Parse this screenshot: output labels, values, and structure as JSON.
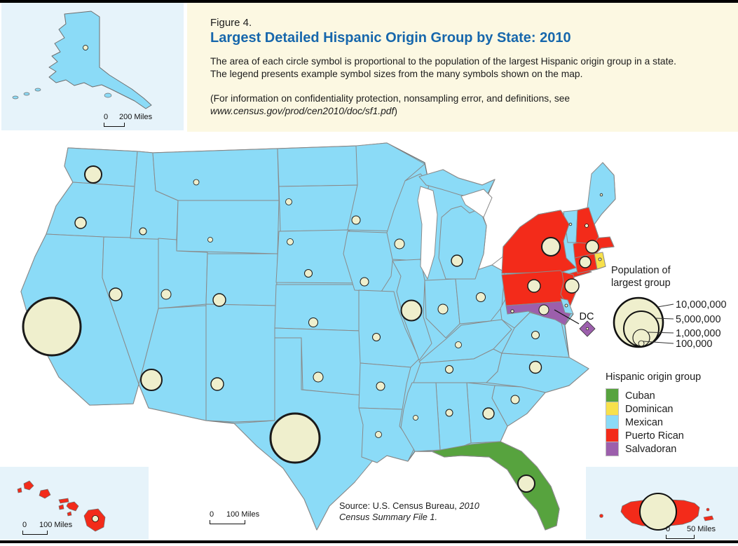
{
  "header": {
    "figure_label": "Figure 4.",
    "title": "Largest Detailed Hispanic Origin Group by State: 2010",
    "description_line1": "The area of each circle symbol is proportional to the population of the largest Hispanic origin group in a state.",
    "description_line2": "The legend presents example symbol sizes from the many symbols shown on the map.",
    "note_line1": "(For information on confidentiality protection, nonsampling error, and definitions, see",
    "note_url": "www.census.gov/prod/cen2010/doc/sf1.pdf",
    "note_close": ")"
  },
  "size_legend": {
    "title_line1": "Population of",
    "title_line2": "largest group",
    "items": [
      {
        "label": "10,000,000",
        "value": 10000000
      },
      {
        "label": "5,000,000",
        "value": 5000000
      },
      {
        "label": "1,000,000",
        "value": 1000000
      },
      {
        "label": "100,000",
        "value": 100000
      }
    ]
  },
  "origin_legend": {
    "title": "Hispanic origin group",
    "entries": [
      {
        "label": "Cuban",
        "color": "#57A33E"
      },
      {
        "label": "Dominican",
        "color": "#F8E14B"
      },
      {
        "label": "Mexican",
        "color": "#8BDBF7"
      },
      {
        "label": "Puerto Rican",
        "color": "#F32B1A"
      },
      {
        "label": "Salvadoran",
        "color": "#9C5FAC"
      }
    ]
  },
  "insets": {
    "alaska": {
      "scale_zero": "0",
      "scale_label": "200 Miles"
    },
    "hawaii": {
      "scale_zero": "0",
      "scale_label": "100 Miles"
    },
    "mainland": {
      "scale_zero": "0",
      "scale_label": "100 Miles"
    },
    "puerto_rico": {
      "scale_zero": "0",
      "scale_label": "50 Miles"
    }
  },
  "source": {
    "prefix": "Source:  U.S. Census Bureau, ",
    "citation": "2010 Census Summary File 1."
  },
  "map": {
    "dc_label": "DC",
    "colors": {
      "cuban": "#57A33E",
      "dominican": "#F8E14B",
      "mexican": "#8BDBF7",
      "puerto_rican": "#F32B1A",
      "salvadoran": "#9C5FAC",
      "circle_fill": "#EFEFCD",
      "circle_stroke": "#1a1a1a",
      "border": "#8a8a8a",
      "coast": "#6e6e6e",
      "water": "#ffffff"
    },
    "states": [
      {
        "id": "WA",
        "group": "mexican",
        "layer": 1
      },
      {
        "id": "OR",
        "group": "mexican",
        "layer": 1
      },
      {
        "id": "CA",
        "group": "mexican",
        "layer": 1
      },
      {
        "id": "NV",
        "group": "mexican",
        "layer": 1
      },
      {
        "id": "ID",
        "group": "mexican",
        "layer": 1
      },
      {
        "id": "MT",
        "group": "mexican",
        "layer": 1
      },
      {
        "id": "WY",
        "group": "mexican",
        "layer": 1
      },
      {
        "id": "UT",
        "group": "mexican",
        "layer": 1
      },
      {
        "id": "CO",
        "group": "mexican",
        "layer": 1
      },
      {
        "id": "NM",
        "group": "mexican",
        "layer": 1
      },
      {
        "id": "AZ",
        "group": "mexican",
        "layer": 1
      },
      {
        "id": "ND",
        "group": "mexican",
        "layer": 1
      },
      {
        "id": "SD",
        "group": "mexican",
        "layer": 1
      },
      {
        "id": "NE",
        "group": "mexican",
        "layer": 1
      },
      {
        "id": "KS",
        "group": "mexican",
        "layer": 1
      },
      {
        "id": "OK",
        "group": "mexican",
        "layer": 1
      },
      {
        "id": "TX",
        "group": "mexican",
        "layer": 1
      },
      {
        "id": "MN",
        "group": "mexican",
        "layer": 1
      },
      {
        "id": "IA",
        "group": "mexican",
        "layer": 1
      },
      {
        "id": "MO",
        "group": "mexican",
        "layer": 1
      },
      {
        "id": "AR",
        "group": "mexican",
        "layer": 1
      },
      {
        "id": "LA",
        "group": "mexican",
        "layer": 1
      },
      {
        "id": "WI",
        "group": "mexican",
        "layer": 1
      },
      {
        "id": "IL",
        "group": "mexican",
        "layer": 1
      },
      {
        "id": "IN",
        "group": "mexican",
        "layer": 1
      },
      {
        "id": "OH",
        "group": "mexican",
        "layer": 1
      },
      {
        "id": "MI",
        "group": "mexican",
        "layer": 1
      },
      {
        "id": "MI_UP",
        "group": "mexican",
        "layer": 1
      },
      {
        "id": "KY",
        "group": "mexican",
        "layer": 1
      },
      {
        "id": "TN",
        "group": "mexican",
        "layer": 1
      },
      {
        "id": "WV",
        "group": "mexican",
        "layer": 1
      },
      {
        "id": "VA",
        "group": "mexican",
        "layer": 1
      },
      {
        "id": "NC",
        "group": "mexican",
        "layer": 1
      },
      {
        "id": "SC",
        "group": "mexican",
        "layer": 1
      },
      {
        "id": "GA",
        "group": "mexican",
        "layer": 1
      },
      {
        "id": "AL",
        "group": "mexican",
        "layer": 1
      },
      {
        "id": "MS",
        "group": "mexican",
        "layer": 1
      },
      {
        "id": "VT",
        "group": "mexican",
        "layer": 1
      },
      {
        "id": "ME",
        "group": "mexican",
        "layer": 1
      },
      {
        "id": "FL",
        "group": "cuban",
        "layer": 2
      },
      {
        "id": "NY",
        "group": "puerto_rican",
        "layer": 2
      },
      {
        "id": "NY_LI",
        "group": "puerto_rican",
        "layer": 2
      },
      {
        "id": "PA",
        "group": "puerto_rican",
        "layer": 2
      },
      {
        "id": "NJ",
        "group": "puerto_rican",
        "layer": 2
      },
      {
        "id": "MD",
        "group": "salvadoran",
        "layer": 2
      },
      {
        "id": "DE",
        "group": "mexican",
        "layer": 2
      },
      {
        "id": "CT",
        "group": "puerto_rican",
        "layer": 2
      },
      {
        "id": "MA",
        "group": "puerto_rican",
        "layer": 2
      },
      {
        "id": "NH",
        "group": "puerto_rican",
        "layer": 2
      },
      {
        "id": "RI",
        "group": "dominican",
        "layer": 2
      }
    ],
    "circles": [
      [
        "WA",
        133,
        249,
        12
      ],
      [
        "OR",
        115,
        318,
        8
      ],
      [
        "ID",
        204,
        330,
        5
      ],
      [
        "MT",
        280,
        260,
        4
      ],
      [
        "ND",
        412,
        288,
        4.5
      ],
      [
        "SD",
        414,
        345,
        4.5
      ],
      [
        "MN",
        508,
        314,
        6
      ],
      [
        "WI",
        570,
        348,
        7
      ],
      [
        "MI",
        652,
        372,
        8
      ],
      [
        "NV",
        165,
        420,
        9
      ],
      [
        "UT",
        237,
        420,
        7
      ],
      [
        "WY",
        300,
        342,
        3.5
      ],
      [
        "CO",
        313,
        428,
        9
      ],
      [
        "NE",
        440,
        390,
        5.5
      ],
      [
        "IA",
        520,
        402,
        6
      ],
      [
        "KS",
        447,
        460,
        6.5
      ],
      [
        "MO",
        537,
        481,
        5.5
      ],
      [
        "IL",
        587,
        443,
        14.5
      ],
      [
        "IN",
        632,
        441,
        7
      ],
      [
        "OH",
        686,
        424,
        6.5
      ],
      [
        "CA",
        74,
        466,
        41
      ],
      [
        "AZ",
        216,
        542,
        15
      ],
      [
        "NM",
        310,
        548,
        9
      ],
      [
        "OK",
        454,
        538,
        7
      ],
      [
        "TX",
        421,
        625,
        35
      ],
      [
        "AR",
        543,
        551,
        6
      ],
      [
        "LA",
        540,
        620,
        4.5
      ],
      [
        "MS",
        593,
        596,
        3.5
      ],
      [
        "AL",
        641,
        589,
        5
      ],
      [
        "TN",
        641,
        527,
        5.5
      ],
      [
        "KY",
        654,
        492,
        4.5
      ],
      [
        "WV",
        731,
        444,
        2.2
      ],
      [
        "VA",
        764,
        478,
        5.5
      ],
      [
        "NC",
        764,
        524,
        8.5
      ],
      [
        "GA",
        697,
        590,
        8
      ],
      [
        "SC",
        735,
        570,
        6
      ],
      [
        "FL",
        751,
        690,
        12
      ],
      [
        "NY",
        786,
        352,
        13
      ],
      [
        "PA",
        762,
        408,
        9
      ],
      [
        "NJ",
        816,
        408,
        10
      ],
      [
        "MD",
        776,
        442,
        7
      ],
      [
        "DE",
        808,
        436,
        2
      ],
      [
        "CT",
        835,
        374,
        8
      ],
      [
        "MA",
        845,
        352,
        9
      ],
      [
        "RI",
        856,
        370,
        2
      ],
      [
        "NH",
        837,
        322,
        2.5
      ],
      [
        "VT",
        814,
        320,
        1.8
      ],
      [
        "ME",
        858,
        278,
        1.8
      ]
    ]
  },
  "chart_data": {
    "type": "map",
    "title": "Largest Detailed Hispanic Origin Group by State: 2010",
    "symbol_meaning": "circle area proportional to population of largest Hispanic origin group per state",
    "legend_example_sizes": [
      10000000,
      5000000,
      1000000,
      100000
    ],
    "largest_group_by_state": {
      "Cuban": [
        "FL"
      ],
      "Dominican": [
        "RI"
      ],
      "Puerto Rican": [
        "NY",
        "PA",
        "NJ",
        "CT",
        "MA",
        "NH",
        "HI",
        "PR"
      ],
      "Salvadoran": [
        "MD",
        "DC"
      ],
      "Mexican": [
        "AK",
        "AL",
        "AR",
        "AZ",
        "CA",
        "CO",
        "DE",
        "GA",
        "IA",
        "ID",
        "IL",
        "IN",
        "KS",
        "KY",
        "LA",
        "ME",
        "MI",
        "MN",
        "MO",
        "MS",
        "MT",
        "NC",
        "ND",
        "NE",
        "NM",
        "NV",
        "OH",
        "OK",
        "OR",
        "SC",
        "SD",
        "TN",
        "TX",
        "UT",
        "VA",
        "VT",
        "WA",
        "WI",
        "WV",
        "WY"
      ]
    }
  }
}
